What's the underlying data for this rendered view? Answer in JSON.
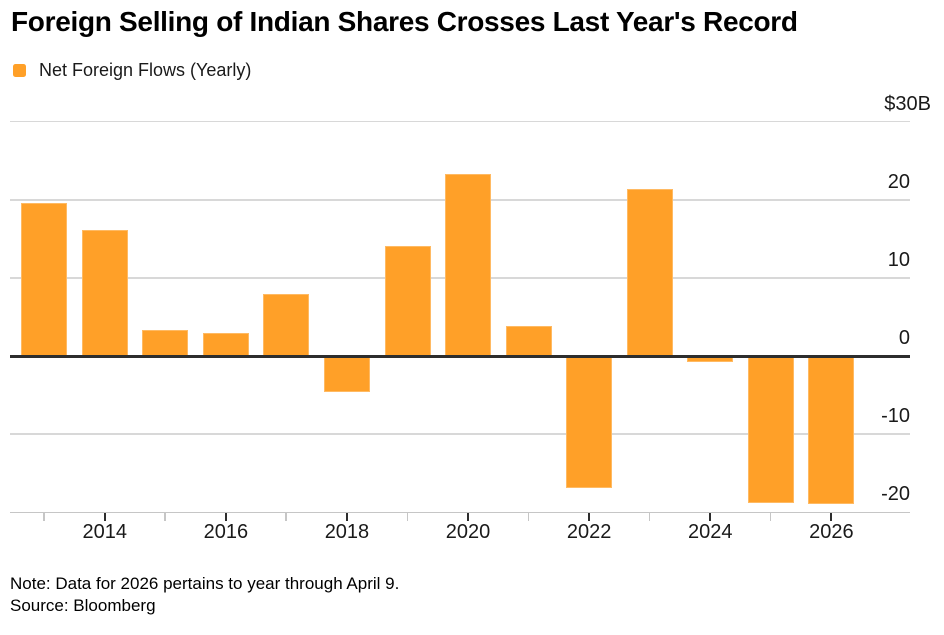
{
  "header": {
    "title": "Foreign Selling of Indian Shares Crosses Last Year's Record",
    "legend": {
      "label": "Net Foreign Flows (Yearly)",
      "swatch_icon": "orange-square-swatch"
    }
  },
  "footer": {
    "note": "Note: Data for 2026 pertains to year through April 9.",
    "source": "Source: Bloomberg"
  },
  "colors": {
    "bar": "#FFA028",
    "gridline": "#D8D8D8",
    "zero_line": "#2D2D2D",
    "axis_line": "#C6C6C6",
    "text": "#1A1A1A",
    "title_text": "#000000"
  },
  "chart_data": {
    "type": "bar",
    "title": "Foreign Selling of Indian Shares Crosses Last Year's Record",
    "unit": "USD billions",
    "categories": [
      "2013",
      "2014",
      "2015",
      "2016",
      "2017",
      "2018",
      "2019",
      "2020",
      "2021",
      "2022",
      "2023",
      "2024",
      "2025",
      "2026"
    ],
    "series": [
      {
        "name": "Net Foreign Flows (Yearly)",
        "values": [
          19.6,
          16.1,
          3.3,
          2.9,
          7.9,
          -4.6,
          14.1,
          23.3,
          3.8,
          -16.9,
          21.4,
          -0.7,
          -18.8,
          -19.0
        ]
      }
    ],
    "ylim": [
      -20,
      30
    ],
    "baseline": 0,
    "y_ticks": [
      {
        "label": "$30B",
        "value": 30
      },
      {
        "label": "20",
        "value": 20
      },
      {
        "label": "10",
        "value": 10
      },
      {
        "label": "0",
        "value": 0
      },
      {
        "label": "-10",
        "value": -10
      },
      {
        "label": "-20",
        "value": -20
      }
    ],
    "x_tick_labels": [
      "2014",
      "2016",
      "2018",
      "2020",
      "2022",
      "2024",
      "2026"
    ],
    "grid": "horizontal-only",
    "legend_position": "top-left"
  }
}
